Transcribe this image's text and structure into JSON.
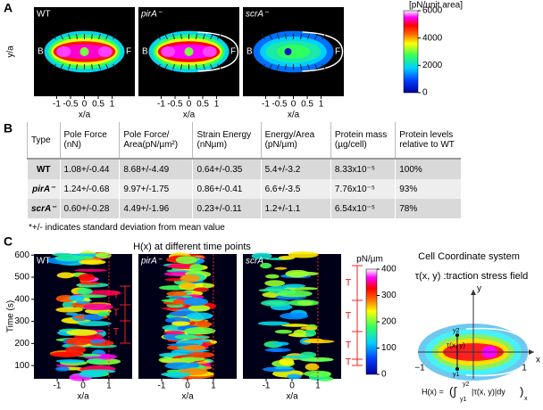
{
  "panel_a": {
    "label": "A",
    "images": [
      {
        "label": "WT"
      },
      {
        "label": "pirA⁻"
      },
      {
        "label": "scrA⁻"
      }
    ],
    "back_label": "B",
    "front_label": "F",
    "y_axis_label": "y/a",
    "x_axis_label": "x/a",
    "xlim": [
      -1.82,
      1.82
    ],
    "xticks": [
      -1,
      -0.5,
      0,
      0.5,
      1
    ],
    "colorbar": {
      "label": "[pN/unit area]",
      "lim": [
        0,
        6000
      ],
      "ticks": [
        0,
        2000,
        4000,
        6000
      ]
    }
  },
  "panel_b": {
    "label": "B",
    "table": {
      "header": [
        "Type",
        "Pole Force (nN)",
        "Pole Force/ Area(pN/µm²)",
        "Strain Energy (nNµm)",
        "Energy/Area (pN/µm)",
        "Protein mass (µg/cell)",
        "Protein levels relative to WT"
      ],
      "rows": [
        [
          "WT",
          "1.08+/-0.44",
          "8.68+/-4.49",
          "0.64+/-0.35",
          "5.4+/-3.2",
          "8.33x10⁻⁵",
          "100%"
        ],
        [
          "pirA⁻",
          "1.24+/-0.68",
          "9.97+/-1.75",
          "0.86+/-0.41",
          "6.6+/-3.5",
          "7.76x10⁻⁵",
          "93%"
        ],
        [
          "scrA⁻",
          "0.60+/-0.28",
          "4.49+/-1.96",
          "0.23+/-0.11",
          "1.2+/-1.1",
          "6.54x10⁻⁵",
          "78%"
        ]
      ]
    },
    "footnote": "*+/- indicates standard deviation from mean value"
  },
  "panel_c": {
    "label": "C",
    "title": "H(x) at different time points",
    "images": [
      {
        "label": "WT"
      },
      {
        "label": "pirA⁻"
      },
      {
        "label": "scrA⁻"
      }
    ],
    "y_axis_label": "Time (s)",
    "ylim": [
      40,
      605
    ],
    "yticks": [
      100,
      200,
      300,
      400,
      500,
      600
    ],
    "x_axis_label": "x/a",
    "xlim": [
      -1.9,
      1.9
    ],
    "xticks": [
      -1,
      0,
      1
    ],
    "period_label": "T",
    "colorbar": {
      "label": "pN/µm",
      "lim": [
        0,
        400
      ],
      "ticks": [
        0,
        100,
        200,
        300,
        400
      ]
    }
  },
  "cell_diagram": {
    "title": "Cell Coordinate system",
    "field_label": "τ(x, y) :traction stress field",
    "x_axis": "x",
    "y_axis": "y",
    "left_tick": "−1",
    "right_tick": "1",
    "point_label": "τ(x, y)",
    "upper": "y2",
    "lower": "y1",
    "formula": {
      "lhs": "H(x) =",
      "open": "(∫",
      "upper": "y2",
      "lower": "y1",
      "integrand": "|τ(x, y)|dy",
      "close": ")",
      "subscript": "x"
    }
  }
}
